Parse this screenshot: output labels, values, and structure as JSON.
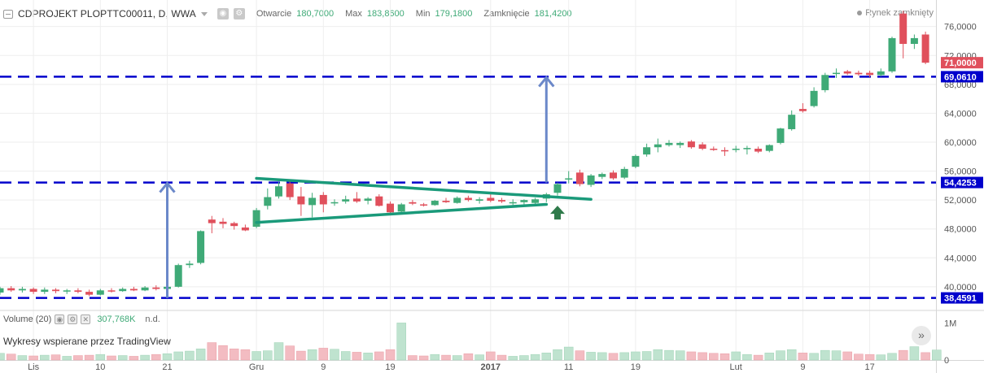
{
  "header": {
    "symbol": "CDPROJEKT PLOPTTC00011, D, WWA",
    "open_label": "Otwarcie",
    "open_value": "180,7000",
    "high_label": "Max",
    "high_value": "183,8600",
    "low_label": "Min",
    "low_value": "179,1800",
    "close_label": "Zamknięcie",
    "close_value": "181,4200",
    "market_status": "Rynek zamknięty"
  },
  "volume_legend": {
    "label": "Volume (20)",
    "value": "307,768K",
    "extra": "n.d."
  },
  "attribution": "Wykresy wspierane przez TradingView",
  "scroll_button": "»",
  "colors": {
    "up": "#3faa77",
    "down": "#e0505c",
    "level": "#0000cc",
    "triangle": "#1a9a7a",
    "arrow": "#6b88c9",
    "signal_arrow": "#2f7a4a"
  },
  "chart_data": [
    {
      "type": "candlestick",
      "ylim": [
        37.4,
        79
      ],
      "y_ticks": [
        "40,0000",
        "44,0000",
        "48,0000",
        "52,0000",
        "56,0000",
        "60,0000",
        "64,0000",
        "68,0000",
        "72,0000",
        "76,0000"
      ],
      "y_tick_values": [
        40,
        44,
        48,
        52,
        56,
        60,
        64,
        68,
        72,
        76
      ],
      "x_ticks": [
        {
          "label": "Lis",
          "i": 3,
          "bold": false
        },
        {
          "label": "10",
          "i": 9,
          "bold": false
        },
        {
          "label": "21",
          "i": 15,
          "bold": false
        },
        {
          "label": "Gru",
          "i": 23,
          "bold": false
        },
        {
          "label": "9",
          "i": 29,
          "bold": false
        },
        {
          "label": "19",
          "i": 35,
          "bold": false
        },
        {
          "label": "2017",
          "i": 44,
          "bold": true
        },
        {
          "label": "11",
          "i": 51,
          "bold": false
        },
        {
          "label": "19",
          "i": 57,
          "bold": false
        },
        {
          "label": "Lut",
          "i": 66,
          "bold": false
        },
        {
          "label": "9",
          "i": 72,
          "bold": false
        },
        {
          "label": "17",
          "i": 78,
          "bold": false
        }
      ],
      "price_labels": [
        {
          "text": "71,0000",
          "value": 71.0,
          "color": "#e0505c"
        },
        {
          "text": "69,0610",
          "value": 69.061,
          "color": "#0000cc"
        },
        {
          "text": "54,4253",
          "value": 54.4253,
          "color": "#0000cc"
        },
        {
          "text": "38,4591",
          "value": 38.4591,
          "color": "#0000cc"
        }
      ],
      "horizontal_levels": [
        69.061,
        54.4253,
        38.4591
      ],
      "triangle_upper": [
        [
          23,
          55.0
        ],
        [
          53,
          52.1
        ]
      ],
      "triangle_lower": [
        [
          23,
          48.9
        ],
        [
          49,
          51.4
        ]
      ],
      "measure_arrows": [
        {
          "i": 15,
          "from": 38.4591,
          "to": 54.4253
        },
        {
          "i": 49,
          "from": 54.4253,
          "to": 69.061
        }
      ],
      "signal_arrow": {
        "i": 50,
        "value": 50.2
      },
      "candles": [
        {
          "o": 39.2,
          "h": 40.0,
          "l": 38.9,
          "c": 39.8
        },
        {
          "o": 39.8,
          "h": 40.1,
          "l": 39.3,
          "c": 39.5
        },
        {
          "o": 39.5,
          "h": 40.0,
          "l": 39.2,
          "c": 39.7
        },
        {
          "o": 39.7,
          "h": 39.9,
          "l": 39.0,
          "c": 39.3
        },
        {
          "o": 39.3,
          "h": 39.9,
          "l": 39.0,
          "c": 39.6
        },
        {
          "o": 39.6,
          "h": 39.8,
          "l": 39.1,
          "c": 39.4
        },
        {
          "o": 39.4,
          "h": 39.7,
          "l": 39.0,
          "c": 39.5
        },
        {
          "o": 39.5,
          "h": 39.8,
          "l": 39.1,
          "c": 39.3
        },
        {
          "o": 39.3,
          "h": 39.6,
          "l": 38.7,
          "c": 38.9
        },
        {
          "o": 38.9,
          "h": 39.7,
          "l": 38.8,
          "c": 39.5
        },
        {
          "o": 39.5,
          "h": 39.8,
          "l": 39.2,
          "c": 39.4
        },
        {
          "o": 39.4,
          "h": 39.9,
          "l": 39.3,
          "c": 39.7
        },
        {
          "o": 39.7,
          "h": 40.0,
          "l": 39.4,
          "c": 39.5
        },
        {
          "o": 39.5,
          "h": 40.1,
          "l": 39.4,
          "c": 39.9
        },
        {
          "o": 39.9,
          "h": 40.2,
          "l": 39.5,
          "c": 39.7
        },
        {
          "o": 39.7,
          "h": 40.3,
          "l": 39.5,
          "c": 40.0
        },
        {
          "o": 40.0,
          "h": 43.2,
          "l": 39.9,
          "c": 43.0
        },
        {
          "o": 43.0,
          "h": 43.6,
          "l": 42.6,
          "c": 43.2
        },
        {
          "o": 43.3,
          "h": 47.8,
          "l": 43.1,
          "c": 47.7
        },
        {
          "o": 49.3,
          "h": 49.8,
          "l": 47.4,
          "c": 48.8
        },
        {
          "o": 49.0,
          "h": 49.5,
          "l": 48.1,
          "c": 48.7
        },
        {
          "o": 48.8,
          "h": 49.0,
          "l": 47.9,
          "c": 48.4
        },
        {
          "o": 48.2,
          "h": 48.6,
          "l": 47.7,
          "c": 47.8
        },
        {
          "o": 48.3,
          "h": 50.9,
          "l": 48.1,
          "c": 50.6
        },
        {
          "o": 51.2,
          "h": 53.6,
          "l": 50.7,
          "c": 52.4
        },
        {
          "o": 52.5,
          "h": 54.5,
          "l": 52.2,
          "c": 53.9
        },
        {
          "o": 54.3,
          "h": 54.8,
          "l": 52.0,
          "c": 52.4
        },
        {
          "o": 52.5,
          "h": 53.8,
          "l": 49.8,
          "c": 51.4
        },
        {
          "o": 51.3,
          "h": 53.0,
          "l": 49.6,
          "c": 52.3
        },
        {
          "o": 52.7,
          "h": 53.1,
          "l": 50.3,
          "c": 51.4
        },
        {
          "o": 51.6,
          "h": 52.1,
          "l": 51.2,
          "c": 51.7
        },
        {
          "o": 51.8,
          "h": 52.6,
          "l": 51.5,
          "c": 52.1
        },
        {
          "o": 52.2,
          "h": 53.1,
          "l": 51.6,
          "c": 51.8
        },
        {
          "o": 51.9,
          "h": 52.4,
          "l": 51.4,
          "c": 52.2
        },
        {
          "o": 52.5,
          "h": 52.8,
          "l": 51.1,
          "c": 51.2
        },
        {
          "o": 51.5,
          "h": 51.8,
          "l": 50.1,
          "c": 50.3
        },
        {
          "o": 50.4,
          "h": 51.6,
          "l": 50.1,
          "c": 51.4
        },
        {
          "o": 51.7,
          "h": 52.0,
          "l": 51.3,
          "c": 51.5
        },
        {
          "o": 51.4,
          "h": 51.6,
          "l": 51.1,
          "c": 51.3
        },
        {
          "o": 51.3,
          "h": 52.0,
          "l": 51.2,
          "c": 51.9
        },
        {
          "o": 51.9,
          "h": 52.3,
          "l": 51.6,
          "c": 51.7
        },
        {
          "o": 51.6,
          "h": 52.5,
          "l": 51.5,
          "c": 52.3
        },
        {
          "o": 52.3,
          "h": 52.6,
          "l": 51.8,
          "c": 52.0
        },
        {
          "o": 51.9,
          "h": 52.4,
          "l": 51.5,
          "c": 52.1
        },
        {
          "o": 52.3,
          "h": 52.8,
          "l": 51.7,
          "c": 51.9
        },
        {
          "o": 52.0,
          "h": 52.3,
          "l": 51.6,
          "c": 51.8
        },
        {
          "o": 51.6,
          "h": 52.1,
          "l": 51.3,
          "c": 51.7
        },
        {
          "o": 51.7,
          "h": 52.1,
          "l": 51.4,
          "c": 52.0
        },
        {
          "o": 51.6,
          "h": 52.3,
          "l": 51.2,
          "c": 52.1
        },
        {
          "o": 52.2,
          "h": 53.0,
          "l": 51.7,
          "c": 52.8
        },
        {
          "o": 53.0,
          "h": 54.4,
          "l": 52.6,
          "c": 54.2
        },
        {
          "o": 54.9,
          "h": 56.0,
          "l": 54.3,
          "c": 55.0
        },
        {
          "o": 55.8,
          "h": 56.2,
          "l": 53.9,
          "c": 54.2
        },
        {
          "o": 54.1,
          "h": 55.6,
          "l": 53.8,
          "c": 55.4
        },
        {
          "o": 55.2,
          "h": 55.8,
          "l": 54.9,
          "c": 55.6
        },
        {
          "o": 55.8,
          "h": 56.1,
          "l": 54.8,
          "c": 55.0
        },
        {
          "o": 55.1,
          "h": 56.6,
          "l": 54.9,
          "c": 56.3
        },
        {
          "o": 56.6,
          "h": 58.3,
          "l": 56.4,
          "c": 58.1
        },
        {
          "o": 58.3,
          "h": 59.8,
          "l": 58.0,
          "c": 59.3
        },
        {
          "o": 59.3,
          "h": 60.5,
          "l": 58.6,
          "c": 59.7
        },
        {
          "o": 59.6,
          "h": 60.3,
          "l": 59.4,
          "c": 59.9
        },
        {
          "o": 59.6,
          "h": 60.1,
          "l": 59.2,
          "c": 59.9
        },
        {
          "o": 60.1,
          "h": 60.3,
          "l": 59.1,
          "c": 59.3
        },
        {
          "o": 59.7,
          "h": 60.0,
          "l": 58.9,
          "c": 59.1
        },
        {
          "o": 59.1,
          "h": 59.4,
          "l": 58.8,
          "c": 59.0
        },
        {
          "o": 58.9,
          "h": 59.3,
          "l": 58.1,
          "c": 58.8
        },
        {
          "o": 59.0,
          "h": 59.5,
          "l": 58.6,
          "c": 59.1
        },
        {
          "o": 59.1,
          "h": 59.5,
          "l": 58.3,
          "c": 59.2
        },
        {
          "o": 59.1,
          "h": 59.4,
          "l": 58.5,
          "c": 58.7
        },
        {
          "o": 58.8,
          "h": 59.7,
          "l": 58.6,
          "c": 59.6
        },
        {
          "o": 59.9,
          "h": 62.0,
          "l": 59.7,
          "c": 61.9
        },
        {
          "o": 61.8,
          "h": 64.4,
          "l": 61.6,
          "c": 63.8
        },
        {
          "o": 64.6,
          "h": 65.4,
          "l": 64.1,
          "c": 64.3
        },
        {
          "o": 65.0,
          "h": 67.6,
          "l": 64.8,
          "c": 67.1
        },
        {
          "o": 67.2,
          "h": 69.6,
          "l": 66.9,
          "c": 69.3
        },
        {
          "o": 69.5,
          "h": 70.2,
          "l": 68.9,
          "c": 69.6
        },
        {
          "o": 69.8,
          "h": 70.0,
          "l": 69.3,
          "c": 69.5
        },
        {
          "o": 69.6,
          "h": 69.9,
          "l": 69.2,
          "c": 69.4
        },
        {
          "o": 69.6,
          "h": 69.9,
          "l": 69.0,
          "c": 69.3
        },
        {
          "o": 69.3,
          "h": 70.2,
          "l": 69.1,
          "c": 69.8
        },
        {
          "o": 69.8,
          "h": 74.6,
          "l": 69.6,
          "c": 74.4
        },
        {
          "o": 77.8,
          "h": 78.2,
          "l": 71.6,
          "c": 73.6
        },
        {
          "o": 73.6,
          "h": 74.9,
          "l": 72.9,
          "c": 74.4
        },
        {
          "o": 74.9,
          "h": 75.3,
          "l": 70.8,
          "c": 71.0
        }
      ],
      "volume": {
        "ylim": [
          0,
          1250
        ],
        "y_ticks": [
          {
            "label": "1M",
            "value": 1000
          },
          {
            "label": "0",
            "value": 0
          }
        ],
        "values": [
          180,
          160,
          120,
          110,
          130,
          140,
          100,
          120,
          130,
          150,
          110,
          120,
          100,
          130,
          150,
          170,
          220,
          240,
          300,
          470,
          390,
          300,
          280,
          230,
          250,
          470,
          380,
          240,
          280,
          320,
          290,
          230,
          210,
          190,
          220,
          280,
          1000,
          120,
          110,
          150,
          130,
          120,
          170,
          140,
          220,
          130,
          100,
          120,
          150,
          190,
          280,
          350,
          250,
          210,
          200,
          180,
          200,
          220,
          230,
          280,
          260,
          250,
          220,
          200,
          180,
          170,
          220,
          150,
          130,
          190,
          250,
          280,
          190,
          180,
          260,
          250,
          220,
          160,
          150,
          140,
          180,
          260,
          360,
          200,
          270
        ]
      }
    }
  ]
}
